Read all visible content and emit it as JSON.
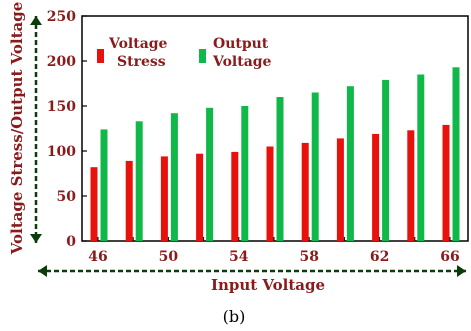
{
  "chart_data": {
    "type": "bar",
    "xlabel": "Input Voltage",
    "ylabel": "Voltage Stress/Output Voltage",
    "ylim": [
      0,
      250
    ],
    "yticks": [
      "0",
      "50",
      "100",
      "150",
      "200",
      "250"
    ],
    "x_tick_labels": [
      "46",
      "50",
      "54",
      "58",
      "62",
      "66"
    ],
    "categories": [
      "46",
      "48",
      "50",
      "52",
      "54",
      "56",
      "58",
      "60",
      "62",
      "64",
      "66"
    ],
    "series": [
      {
        "name": "Voltage Stress",
        "color": "#e8120c",
        "values": [
          82,
          89,
          94,
          97,
          99,
          105,
          109,
          114,
          119,
          123,
          129
        ]
      },
      {
        "name": "Output Voltage",
        "color": "#10b84a",
        "values": [
          124,
          133,
          142,
          148,
          150,
          160,
          165,
          172,
          179,
          185,
          193
        ]
      }
    ],
    "legend": "top-left",
    "grid": false
  },
  "caption": "(b)",
  "colors": {
    "text": "#8b1a1a",
    "axis_arrow": "#0b3d0b"
  }
}
